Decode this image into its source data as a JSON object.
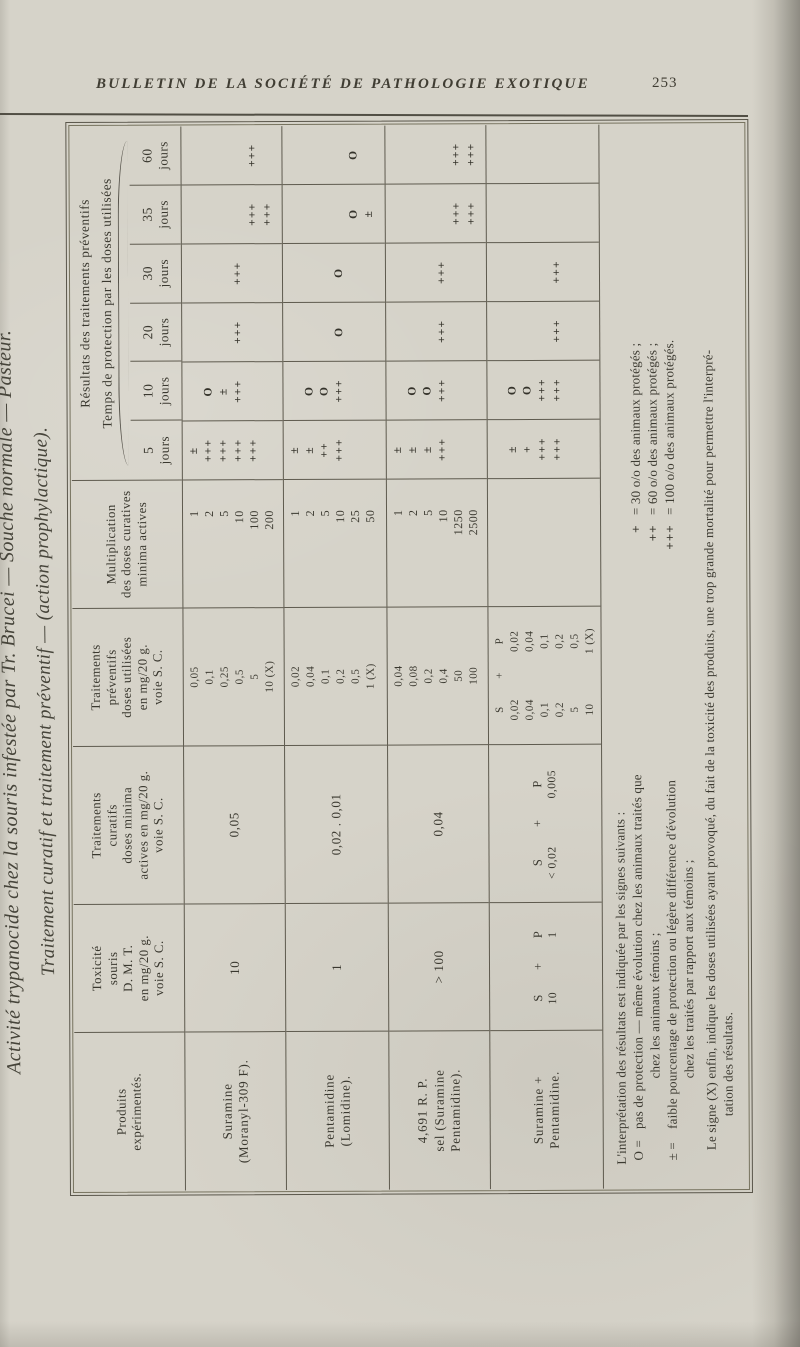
{
  "page_header": {
    "journal": "BULLETIN DE LA SOCIÉTÉ DE PATHOLOGIE EXOTIQUE",
    "page_number": "253"
  },
  "margin_title": {
    "line1": "Activité trypanocide chez la souris infestée par Tr. Brucei — Souche normale — Pasteur.",
    "line2": "Traitement curatif et traitement préventif — (action prophylactique)."
  },
  "table": {
    "headers": {
      "products": [
        "Produits",
        "expérimentés."
      ],
      "toxicity": [
        "Toxicité",
        "souris",
        "D. M. T.",
        "en mg/20 g.",
        "voie S. C."
      ],
      "curative": [
        "Traitements",
        "curatifs",
        "doses minima",
        "actives en mg/20 g.",
        "voie S. C."
      ],
      "preventive": [
        "Traitements",
        "préventifs",
        "doses utilisées",
        "en mg/20 g.",
        "voie S. C."
      ],
      "multiplication": [
        "Multiplication",
        "des doses curatives",
        "minima actives"
      ],
      "results_title1": "Résultats des traitements préventifs",
      "results_title2": "Temps de protection par les doses utilisées",
      "jours_unit": "jours",
      "jours": [
        "5",
        "10",
        "20",
        "30",
        "35",
        "60"
      ]
    },
    "rows": [
      {
        "product": [
          "Suramine",
          "(Moranyl-309 F)."
        ],
        "toxicity": "10",
        "curative": "0,05",
        "preventive": [
          "0,05",
          "0,1",
          "0,25",
          "0,5",
          "5",
          "10 (X)"
        ],
        "multiplication": [
          "1",
          "2",
          "5",
          "10",
          "100",
          "200"
        ],
        "results": [
          [
            "±",
            "+++",
            "+++",
            "+++",
            "+++",
            ""
          ],
          [
            "",
            "O",
            "±",
            "+++",
            "",
            ""
          ],
          [
            "",
            "",
            "",
            "+++",
            "",
            ""
          ],
          [
            "",
            "",
            "",
            "+++",
            "",
            ""
          ],
          [
            "",
            "",
            "",
            "",
            "+++",
            "+++"
          ],
          [
            "",
            "",
            "",
            "",
            "+++",
            ""
          ]
        ]
      },
      {
        "product": [
          "Pentamidine",
          "(Lomidine)."
        ],
        "toxicity": "1",
        "curative": "0,02 . 0,01",
        "preventive": [
          "0,02",
          "0,04",
          "0,1",
          "0,2",
          "0,5",
          "1 (X)"
        ],
        "multiplication": [
          "1",
          "2",
          "5",
          "10",
          "25",
          "50"
        ],
        "results": [
          [
            "±",
            "±",
            "++",
            "+++",
            "",
            ""
          ],
          [
            "",
            "O",
            "O",
            "+++",
            "",
            ""
          ],
          [
            "",
            "",
            "",
            "O",
            "",
            ""
          ],
          [
            "",
            "",
            "",
            "O",
            "",
            ""
          ],
          [
            "",
            "",
            "",
            "",
            "O",
            "±"
          ],
          [
            "",
            "",
            "",
            "",
            "O",
            ""
          ]
        ]
      },
      {
        "product": [
          "4,691 R. P.",
          "sel (Suramine",
          "Pentamidine)."
        ],
        "toxicity": "> 100",
        "curative": "0,04",
        "preventive": [
          "0,04",
          "0,08",
          "0,2",
          "0,4",
          "50",
          "100"
        ],
        "multiplication": [
          "1",
          "2",
          "5",
          "10",
          "1250",
          "2500"
        ],
        "results": [
          [
            "±",
            "±",
            "±",
            "+++",
            "",
            ""
          ],
          [
            "",
            "O",
            "O",
            "+++",
            "",
            ""
          ],
          [
            "",
            "",
            "",
            "+++",
            "",
            ""
          ],
          [
            "",
            "",
            "",
            "+++",
            "",
            ""
          ],
          [
            "",
            "",
            "",
            "",
            "+++",
            "+++"
          ],
          [
            "",
            "",
            "",
            "",
            "+++",
            "+++"
          ]
        ]
      },
      {
        "product": [
          "Suramine +",
          "Pentamidine."
        ],
        "toxicity_combo": {
          "left": "S",
          "left_value": "10",
          "op": "+",
          "right": "P",
          "right_value": "1"
        },
        "curative_combo": {
          "left": "S",
          "left_value": "< 0,02",
          "op": "+",
          "right": "P",
          "right_value": "0,005"
        },
        "preventive_combo": {
          "left": "S",
          "op": "+",
          "right": "P",
          "left_values": [
            "0,02",
            "0,04",
            "0,1",
            "0,2",
            "5",
            "10"
          ],
          "right_values": [
            "0,02",
            "0,04",
            "0,1",
            "0,2",
            "0,5",
            "1 (X)"
          ]
        },
        "multiplication": [
          "",
          "",
          "",
          "",
          "",
          ""
        ],
        "results": [
          [
            "±",
            "+",
            "+++",
            "+++",
            "",
            ""
          ],
          [
            "O",
            "O",
            "+++",
            "+++",
            "",
            ""
          ],
          [
            "",
            "",
            "",
            "+++",
            "",
            ""
          ],
          [
            "",
            "",
            "",
            "+++",
            "",
            ""
          ],
          [
            "",
            "",
            "",
            "",
            "",
            ""
          ],
          [
            "",
            "",
            "",
            "",
            "",
            ""
          ]
        ]
      }
    ]
  },
  "footnotes": {
    "intro": "L'interprétation des résultats est indiquée par les signes suivants :",
    "definitions": [
      {
        "sign": "O =",
        "line1": "pas de protection — même évolution chez les animaux traités que",
        "line2": "chez les animaux témoins ;"
      },
      {
        "sign": "± =",
        "line1": "faible pourcentage de protection ou légère différence d'évolution",
        "line2": "chez les traités par rapport aux témoins ;"
      }
    ],
    "percent_defs": [
      {
        "sign": "+",
        "text": "= 30 o/o des animaux protégés ;"
      },
      {
        "sign": "++",
        "text": "= 60 o/o des animaux protégés ;"
      },
      {
        "sign": "+++",
        "text": "= 100 o/o des animaux protégés."
      }
    ],
    "x_note_line1": "Le signe (X) enfin, indique les doses utilisées ayant provoqué, du fait de la toxicité des produits, une trop grande mortalité pour permettre l'interpré-",
    "x_note_line2": "tation des résultats."
  }
}
